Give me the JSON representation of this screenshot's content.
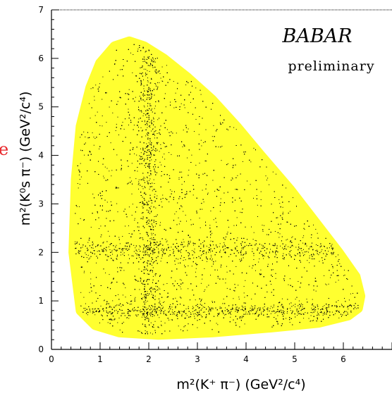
{
  "chart_data": {
    "type": "scatter",
    "title": "",
    "xlabel": "m²(K⁺ π⁻) (GeV²/c⁴)",
    "ylabel": "m²(K⁰s π⁻) (GeV²/c⁴)",
    "xlim": [
      0,
      7
    ],
    "ylim": [
      0,
      7
    ],
    "x_ticks": [
      "0",
      "1",
      "2",
      "3",
      "4",
      "5",
      "6"
    ],
    "y_ticks": [
      "0",
      "1",
      "2",
      "3",
      "4",
      "5",
      "6",
      "7"
    ],
    "grid": false,
    "legend": "none",
    "annotations": {
      "experiment": "BABAR",
      "status": "preliminary",
      "left_edge_fragment": "e"
    },
    "kinematic_boundary": {
      "x": [
        0.45,
        0.5,
        0.6,
        0.8,
        1.0,
        1.3,
        1.6,
        1.9,
        2.3,
        2.8,
        3.3,
        3.8,
        4.3,
        4.9,
        5.4,
        5.9,
        6.25,
        6.35,
        6.3,
        6.1,
        5.5,
        4.5,
        3.3,
        2.2,
        1.4,
        0.9,
        0.6,
        0.45
      ],
      "y": [
        2.0,
        3.5,
        4.6,
        5.4,
        5.9,
        6.25,
        6.35,
        6.25,
        6.0,
        5.6,
        5.15,
        4.6,
        4.0,
        3.3,
        2.65,
        2.0,
        1.5,
        1.1,
        0.85,
        0.7,
        0.55,
        0.45,
        0.35,
        0.3,
        0.35,
        0.5,
        0.8,
        2.0
      ]
    },
    "series": [
      {
        "color": "#000000",
        "n_points": 9000
      }
    ],
    "bands": [
      {
        "orientation": "vertical",
        "center": 2.0,
        "width": 0.12
      },
      {
        "orientation": "horizontal",
        "center": 2.05,
        "width": 0.12
      },
      {
        "orientation": "horizontal",
        "center": 0.8,
        "width": 0.08
      }
    ],
    "colors": {
      "fill": "#ffff30",
      "points": "#000000",
      "axis": "#000000"
    }
  }
}
